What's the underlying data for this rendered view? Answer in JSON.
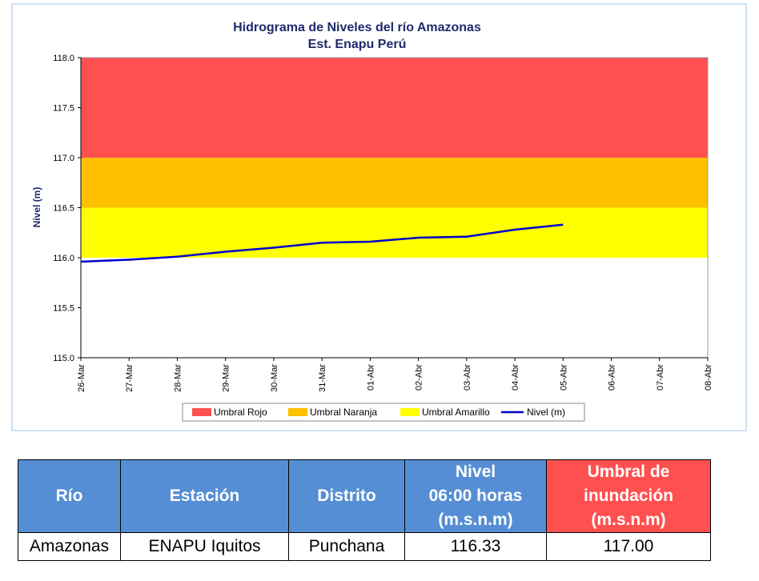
{
  "chart_data": {
    "type": "line",
    "title": [
      "Hidrograma de Niveles del río Amazonas",
      "Est. Enapu Perú"
    ],
    "ylabel": "Nivel (m)",
    "categories": [
      "26-Mar",
      "27-Mar",
      "28-Mar",
      "29-Mar",
      "30-Mar",
      "31-Mar",
      "01-Abr",
      "02-Abr",
      "03-Abr",
      "04-Abr",
      "05-Abr",
      "06-Abr",
      "07-Abr",
      "08-Abr"
    ],
    "series": [
      {
        "name": "Nivel (m)",
        "color": "#0000cc",
        "values": [
          115.96,
          115.98,
          116.01,
          116.06,
          116.1,
          116.15,
          116.16,
          116.2,
          116.21,
          116.28,
          116.33,
          null,
          null,
          null
        ]
      }
    ],
    "bands": [
      {
        "name": "Umbral Rojo",
        "color": "#ff5050",
        "from": 117,
        "to": 118
      },
      {
        "name": "Umbral Naranja",
        "color": "#ffc000",
        "from": 116.5,
        "to": 117
      },
      {
        "name": "Umbral Amarillo",
        "color": "#ffff00",
        "from": 116,
        "to": 116.5
      }
    ],
    "ylim": [
      115,
      118
    ],
    "yticks": [
      {
        "value": 115,
        "label": "115.0"
      },
      115.5,
      {
        "value": 116,
        "label": "116.0"
      },
      116.5,
      {
        "value": 117,
        "label": "117.0"
      },
      117.5,
      {
        "value": 118,
        "label": "118.0"
      }
    ]
  },
  "table": {
    "header": [
      [
        "Río"
      ],
      [
        "Estación"
      ],
      [
        "Distrito"
      ],
      [
        "Nivel",
        "06:00 horas",
        "(m.s.n.m)"
      ],
      [
        "Umbral de",
        "inundación",
        "(m.s.n.m)"
      ]
    ],
    "rows": [
      [
        "Amazonas",
        "ENAPU Iquitos",
        "Punchana",
        "116.33",
        "117.00"
      ]
    ]
  }
}
